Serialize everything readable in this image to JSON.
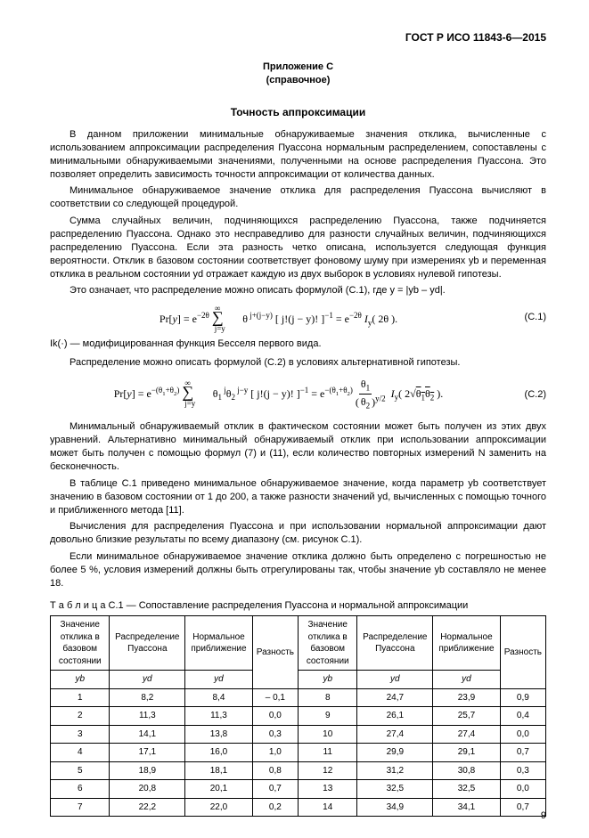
{
  "doc_header": "ГОСТ Р ИСО 11843-6—2015",
  "appendix_label": "Приложение С",
  "appendix_note": "(справочное)",
  "title": "Точность аппроксимации",
  "p1": "В данном приложении минимальные обнаруживаемые значения отклика, вычисленные с использованием аппроксимации распределения Пуассона нормальным распределением, сопоставлены с минимальными обнаруживаемыми значениями, полученными на основе распределения Пуассона. Это позволяет определить зависимость точности аппроксимации от количества данных.",
  "p2": "Минимальное обнаруживаемое значение отклика для распределения Пуассона вычисляют в соответствии со следующей процедурой.",
  "p3": "Сумма случайных величин, подчиняющихся распределению Пуассона, также подчиняется распределению Пуассона. Однако это несправедливо для разности случайных величин, подчиняющихся распределению Пуассона. Если эта разность четко описана, используется следующая функция вероятности. Отклик в базовом состоянии соответствует фоновому шуму при измерениях yb и переменная отклика в реальном состоянии yd отражает каждую из двух выборок в условиях нулевой гипотезы.",
  "p4": "Это означает, что распределение можно описать формулой (С.1), где y = |yb – yd|.",
  "formula1_tex": "Pr[y] = e^{-2\\theta} \\sum_{j=y}^{\\infty} \\theta^{\\,j+(j-y)} \\, [\\,j!(j-y)!\\,]^{-1} = e^{-2\\theta}\\, I_{y}(\\,2\\theta\\,).",
  "formula1_num": "(C.1)",
  "bessel_note": "Ik(·) — модифицированная функция Бесселя первого вида.",
  "p5": "Распределение можно описать формулой (С.2) в условиях альтернативной гипотезы.",
  "formula2_tex": "Pr[y] = e^{-(\\theta_1+\\theta_2)} \\sum_{j=y}^{\\infty} \\theta_1^{\\,j}\\,\\theta_2^{\\,j-y}\\,[\\,j!(j-y)!\\,]^{-1} = e^{-(\\theta_1+\\theta_2)} \\left(\\dfrac{\\theta_1}{\\theta_2}\\right)^{y/2} I_{y}\\!\\left(\\,2\\sqrt{\\theta_1\\theta_2}\\,\\right).",
  "formula2_num": "(C.2)",
  "p6": "Минимальный обнаруживаемый отклик в фактическом состоянии может быть получен из этих двух уравнений. Альтернативно минимальный обнаруживаемый отклик при использовании аппроксимации может быть получен с помощью формул (7) и (11), если количество повторных измерений N заменить на бесконечность.",
  "p7": "В таблице С.1 приведено минимальное обнаруживаемое значение, когда параметр yb соответствует значению в базовом состоянии от 1 до 200, а также разности значений yd, вычисленных с помощью точного и приближенного метода [11].",
  "p8": "Вычисления для распределения Пуассона и при использовании нормальной аппроксимации дают довольно близкие результаты по всему диапазону (см. рисунок С.1).",
  "p9": "Если минимальное обнаруживаемое значение отклика должно быть определено с погрешностью не более 5 %, условия измерений должны быть отрегулированы так, чтобы значение yb составляло не менее 18.",
  "table_caption": "Т а б л и ц а  С.1 — Сопоставление распределения Пуассона и нормальной аппроксимации",
  "columns": {
    "c1": "Значение отклика в базовом состоянии",
    "c2": "Распределение Пуассона",
    "c3": "Нормальное приближение",
    "c4": "Разность",
    "c5": "Значение отклика в базовом состоянии",
    "c6": "Распределение Пуассона",
    "c7": "Нормальное приближение",
    "c8": "Разность",
    "s_yb": "yb",
    "s_yd": "yd"
  },
  "rows": [
    [
      "1",
      "8,2",
      "8,4",
      "– 0,1",
      "8",
      "24,7",
      "23,9",
      "0,9"
    ],
    [
      "2",
      "11,3",
      "11,3",
      "0,0",
      "9",
      "26,1",
      "25,7",
      "0,4"
    ],
    [
      "3",
      "14,1",
      "13,8",
      "0,3",
      "10",
      "27,4",
      "27,4",
      "0,0"
    ],
    [
      "4",
      "17,1",
      "16,0",
      "1,0",
      "11",
      "29,9",
      "29,1",
      "0,7"
    ],
    [
      "5",
      "18,9",
      "18,1",
      "0,8",
      "12",
      "31,2",
      "30,8",
      "0,3"
    ],
    [
      "6",
      "20,8",
      "20,1",
      "0,7",
      "13",
      "32,5",
      "32,5",
      "0,0"
    ],
    [
      "7",
      "22,2",
      "22,0",
      "0,2",
      "14",
      "34,9",
      "34,1",
      "0,7"
    ]
  ],
  "page_number": "9"
}
